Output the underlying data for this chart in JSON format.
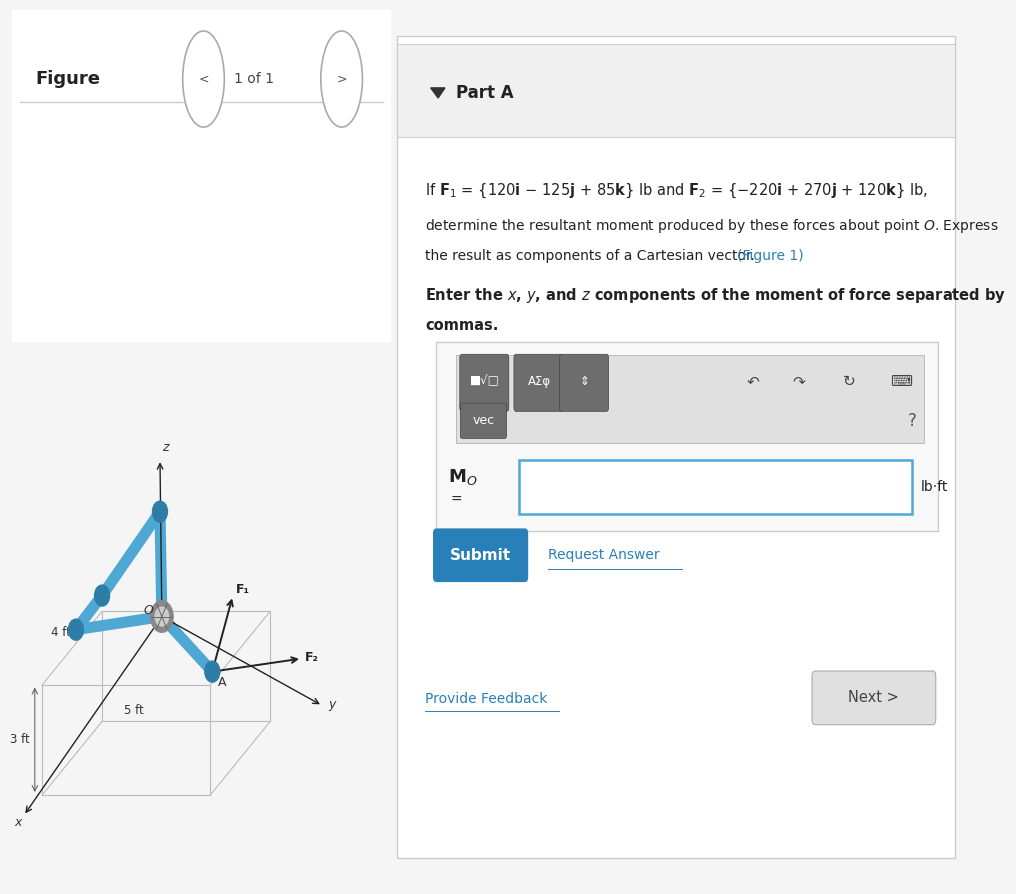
{
  "bg_color": "#f5f5f5",
  "white": "#ffffff",
  "part_a_label": "Part A",
  "toolbar_btn1": "■√□",
  "toolbar_btn2": "AΣφ",
  "toolbar_btn3": "⇕",
  "undo_sym": "↶",
  "redo_sym": "↷",
  "refresh_sym": "↻",
  "keyboard_sym": "⌨",
  "vec_btn": "vec",
  "question_mark": "?",
  "unit_label": "lb·ft",
  "submit_btn_color": "#2980b9",
  "submit_btn_text": "Submit",
  "submit_btn_text_color": "#ffffff",
  "request_answer_text": "Request Answer",
  "request_answer_color": "#2980b9",
  "provide_feedback_color": "#2980b9",
  "provide_feedback_text": "Provide Feedback",
  "next_btn_text": "Next >",
  "next_btn_bg": "#e0e0e0",
  "figure_label": "Figure",
  "figure_nav": "1 of 1",
  "dim_4ft": "4 ft",
  "dim_3ft": "3 ft",
  "dim_5ft": "5 ft",
  "pipe_color": "#4fa8d4",
  "axis_color": "#222222",
  "label_O": "O",
  "label_A": "A",
  "label_F1": "F₁",
  "label_F2": "F₂",
  "label_x": "x",
  "label_y": "y",
  "label_z": "z",
  "divider_color": "#cccccc",
  "input_border_color": "#4fa8d4",
  "panel_border_color": "#cccccc"
}
